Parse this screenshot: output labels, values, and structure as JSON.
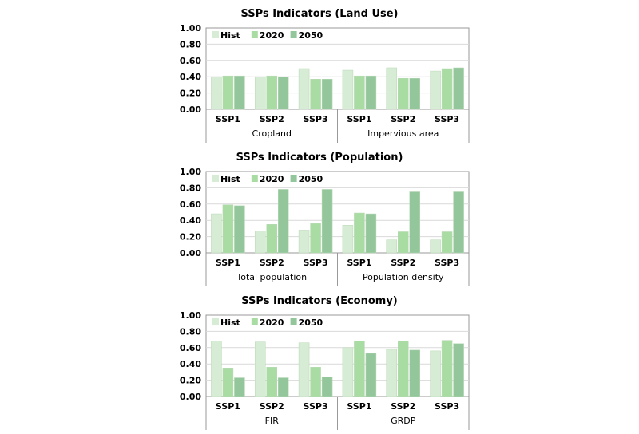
{
  "colors": {
    "Hist": "#d6ecd4",
    "2020": "#a9dca3",
    "2050": "#93c79b",
    "grid": "#d9d9d9",
    "axis": "#999999"
  },
  "chart_data": [
    {
      "type": "bar",
      "title": "SSPs Indicators (Land Use)",
      "ylim": [
        0,
        1
      ],
      "yticks": [
        "0.00",
        "0.20",
        "0.40",
        "0.60",
        "0.80",
        "1.00"
      ],
      "grid": true,
      "legend": "top-left",
      "categories": [
        "SSP1",
        "SSP2",
        "SSP3",
        "SSP1",
        "SSP2",
        "SSP3"
      ],
      "groups": [
        "Cropland",
        "Impervious area"
      ],
      "series": [
        {
          "name": "Hist",
          "values": [
            0.4,
            0.4,
            0.5,
            0.48,
            0.51,
            0.47
          ]
        },
        {
          "name": "2020",
          "values": [
            0.41,
            0.41,
            0.37,
            0.41,
            0.38,
            0.5
          ]
        },
        {
          "name": "2050",
          "values": [
            0.41,
            0.4,
            0.37,
            0.41,
            0.38,
            0.51
          ]
        }
      ]
    },
    {
      "type": "bar",
      "title": "SSPs Indicators (Population)",
      "ylim": [
        0,
        1
      ],
      "yticks": [
        "0.00",
        "0.20",
        "0.40",
        "0.60",
        "0.80",
        "1.00"
      ],
      "grid": true,
      "legend": "top-left",
      "categories": [
        "SSP1",
        "SSP2",
        "SSP3",
        "SSP1",
        "SSP2",
        "SSP3"
      ],
      "groups": [
        "Total population",
        "Population density"
      ],
      "series": [
        {
          "name": "Hist",
          "values": [
            0.48,
            0.27,
            0.28,
            0.34,
            0.16,
            0.16
          ]
        },
        {
          "name": "2020",
          "values": [
            0.59,
            0.35,
            0.36,
            0.49,
            0.26,
            0.26
          ]
        },
        {
          "name": "2050",
          "values": [
            0.58,
            0.78,
            0.78,
            0.48,
            0.75,
            0.75
          ]
        }
      ]
    },
    {
      "type": "bar",
      "title": "SSPs Indicators (Economy)",
      "ylim": [
        0,
        1
      ],
      "yticks": [
        "0.00",
        "0.20",
        "0.40",
        "0.60",
        "0.80",
        "1.00"
      ],
      "grid": true,
      "legend": "top-left",
      "categories": [
        "SSP1",
        "SSP2",
        "SSP3",
        "SSP1",
        "SSP2",
        "SSP3"
      ],
      "groups": [
        "FIR",
        "GRDP"
      ],
      "series": [
        {
          "name": "Hist",
          "values": [
            0.68,
            0.67,
            0.66,
            0.6,
            0.58,
            0.56
          ]
        },
        {
          "name": "2020",
          "values": [
            0.35,
            0.36,
            0.36,
            0.68,
            0.68,
            0.69
          ]
        },
        {
          "name": "2050",
          "values": [
            0.23,
            0.23,
            0.24,
            0.53,
            0.57,
            0.65
          ]
        }
      ]
    }
  ]
}
